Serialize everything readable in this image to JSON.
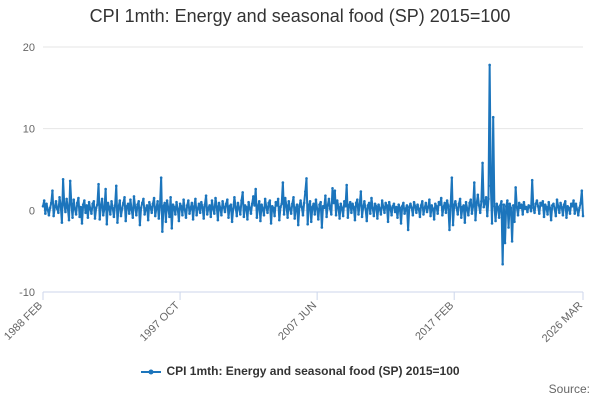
{
  "chart_data": {
    "type": "line",
    "title": "CPI 1mth: Energy and seasonal food (SP) 2015=100",
    "xlabel": "",
    "ylabel": "",
    "ylim": [
      -10,
      20
    ],
    "y_ticks": [
      -10,
      0,
      10,
      20
    ],
    "x_tick_labels": [
      "1988 FEB",
      "1997 OCT",
      "2007 JUN",
      "2017 FEB",
      "2026 MAR"
    ],
    "x_tick_indices": [
      0,
      116,
      232,
      348,
      457
    ],
    "series": [
      {
        "name": "CPI 1mth: Energy and seasonal food (SP) 2015=100",
        "color": "#1c75bc",
        "n_points": 458,
        "values": [
          0.5,
          1.2,
          -0.4,
          0.8,
          0.1,
          -0.6,
          0.3,
          0.9,
          2.4,
          -0.7,
          0.4,
          1.1,
          0.2,
          -0.3,
          1.6,
          0.6,
          -1.5,
          3.8,
          0.7,
          -0.2,
          1.4,
          0.3,
          -1.2,
          3.6,
          0.8,
          -0.9,
          1.3,
          0.2,
          -0.5,
          0.9,
          1.5,
          -0.8,
          0.4,
          -1.6,
          0.7,
          1.2,
          -0.3,
          0.6,
          -0.9,
          1.0,
          0.2,
          -0.4,
          0.8,
          1.1,
          -1.0,
          0.3,
          0.7,
          3.2,
          -1.1,
          0.5,
          1.4,
          -0.6,
          0.2,
          2.6,
          -1.7,
          0.9,
          0.4,
          -0.5,
          1.1,
          0.3,
          -0.8,
          0.6,
          3.0,
          -1.5,
          0.4,
          1.2,
          -0.7,
          0.2,
          0.9,
          1.6,
          -1.3,
          0.5,
          0.8,
          -0.4,
          1.3,
          0.1,
          -0.9,
          1.7,
          0.4,
          -0.6,
          0.7,
          1.1,
          -1.8,
          0.3,
          0.9,
          1.4,
          -0.5,
          0.2,
          0.6,
          -1.2,
          1.0,
          0.4,
          -0.3,
          0.8,
          1.5,
          -0.7,
          0.3,
          1.1,
          -1.0,
          0.6,
          4.0,
          -2.6,
          0.5,
          0.9,
          -1.4,
          1.2,
          0.3,
          -0.8,
          1.6,
          -2.2,
          0.7,
          0.4,
          -0.5,
          1.0,
          0.2,
          -1.3,
          0.8,
          0.5,
          -0.6,
          1.3,
          0.1,
          -0.9,
          0.6,
          1.2,
          -0.4,
          0.3,
          0.9,
          -1.1,
          0.5,
          1.4,
          -0.6,
          0.2,
          0.8,
          -0.3,
          1.0,
          0.4,
          -1.0,
          0.7,
          1.8,
          -0.5,
          0.3,
          0.6,
          -0.8,
          1.2,
          0.2,
          -0.4,
          1.5,
          0.5,
          -1.2,
          0.9,
          0.3,
          -0.6,
          1.1,
          0.4,
          -0.2,
          0.8,
          1.3,
          -0.9,
          0.5,
          0.7,
          -1.4,
          0.2,
          1.6,
          0.4,
          -0.7,
          0.9,
          0.3,
          -0.5,
          1.2,
          2.2,
          -0.8,
          0.6,
          0.4,
          -1.1,
          1.0,
          0.3,
          -0.4,
          0.8,
          1.7,
          0.6,
          2.6,
          -0.9,
          0.5,
          1.1,
          -1.3,
          0.7,
          0.2,
          -0.6,
          1.4,
          0.4,
          -0.3,
          0.9,
          1.2,
          -1.6,
          0.5,
          0.3,
          -0.7,
          1.0,
          0.6,
          1.4,
          -1.2,
          0.4,
          0.8,
          3.4,
          -0.5,
          1.5,
          0.6,
          -0.9,
          1.1,
          0.2,
          -0.4,
          0.8,
          1.6,
          -1.0,
          0.3,
          0.7,
          -1.8,
          0.5,
          1.2,
          0.4,
          -0.6,
          0.9,
          2.3,
          3.9,
          -1.7,
          0.6,
          1.1,
          -1.4,
          0.4,
          0.8,
          -0.5,
          1.3,
          0.2,
          -1.1,
          0.7,
          1.0,
          -2.1,
          0.5,
          0.3,
          1.8,
          -0.8,
          0.6,
          1.4,
          0.2,
          -0.5,
          2.7,
          0.9,
          2.4,
          -0.6,
          1.2,
          0.4,
          -1.0,
          0.8,
          0.3,
          -0.7,
          1.1,
          0.5,
          3.1,
          -0.9,
          0.6,
          1.0,
          -0.3,
          0.8,
          0.4,
          -1.2,
          0.9,
          1.3,
          -0.5,
          0.7,
          2.3,
          -0.8,
          0.4,
          1.1,
          0.2,
          -1.3,
          0.6,
          0.9,
          -0.4,
          1.5,
          0.3,
          -0.7,
          0.8,
          0.5,
          -1.0,
          0.7,
          0.2,
          -0.5,
          1.2,
          0.4,
          -0.3,
          0.9,
          0.6,
          -1.4,
          1.0,
          0.3,
          -0.6,
          0.5,
          0.8,
          -0.2,
          0.4,
          -0.9,
          0.7,
          0.3,
          -1.6,
          0.5,
          0.9,
          -0.4,
          0.2,
          0.6,
          -2.4,
          0.4,
          0.8,
          0.3,
          -0.6,
          1.0,
          0.5,
          -0.3,
          0.7,
          0.2,
          -0.8,
          0.6,
          1.1,
          -0.5,
          0.3,
          0.9,
          -0.2,
          0.4,
          1.3,
          -0.7,
          0.6,
          0.2,
          -1.1,
          0.8,
          0.5,
          -0.4,
          1.0,
          0.7,
          1.5,
          -0.6,
          0.4,
          0.9,
          -0.3,
          1.2,
          0.5,
          -2.4,
          0.7,
          4.0,
          -1.8,
          0.6,
          1.1,
          0.3,
          -0.5,
          0.8,
          1.4,
          -0.9,
          0.4,
          0.6,
          -1.5,
          1.0,
          0.2,
          -0.6,
          0.9,
          1.3,
          -0.4,
          0.5,
          3.4,
          -1.2,
          0.8,
          1.9,
          0.6,
          -0.3,
          1.1,
          5.8,
          0.4,
          0.9,
          1.6,
          -0.7,
          1.4,
          17.8,
          3.0,
          -1.6,
          11.4,
          0.5,
          -1.3,
          0.8,
          0.4,
          -0.9,
          0.6,
          1.1,
          -6.6,
          0.7,
          -4.0,
          0.5,
          1.2,
          -2.1,
          0.8,
          0.3,
          -3.8,
          0.6,
          -1.4,
          2.8,
          0.4,
          -0.6,
          0.9,
          0.3,
          0.7,
          -0.5,
          1.0,
          0.2,
          0.4,
          -0.2,
          0.6,
          0.5,
          -0.1,
          3.7,
          0.3,
          -0.3,
          0.8,
          1.2,
          0.5,
          -0.4,
          0.9,
          0.6,
          1.1,
          -0.8,
          0.7,
          0.4,
          -0.5,
          1.0,
          0.3,
          -1.2,
          0.6,
          0.8,
          0.2,
          -0.7,
          1.3,
          0.5,
          -0.3,
          0.9,
          0.4,
          -0.6,
          0.7,
          1.1,
          -0.9,
          0.5,
          0.3,
          -0.4,
          0.8
        ]
      }
    ],
    "source_label": "Source:"
  }
}
